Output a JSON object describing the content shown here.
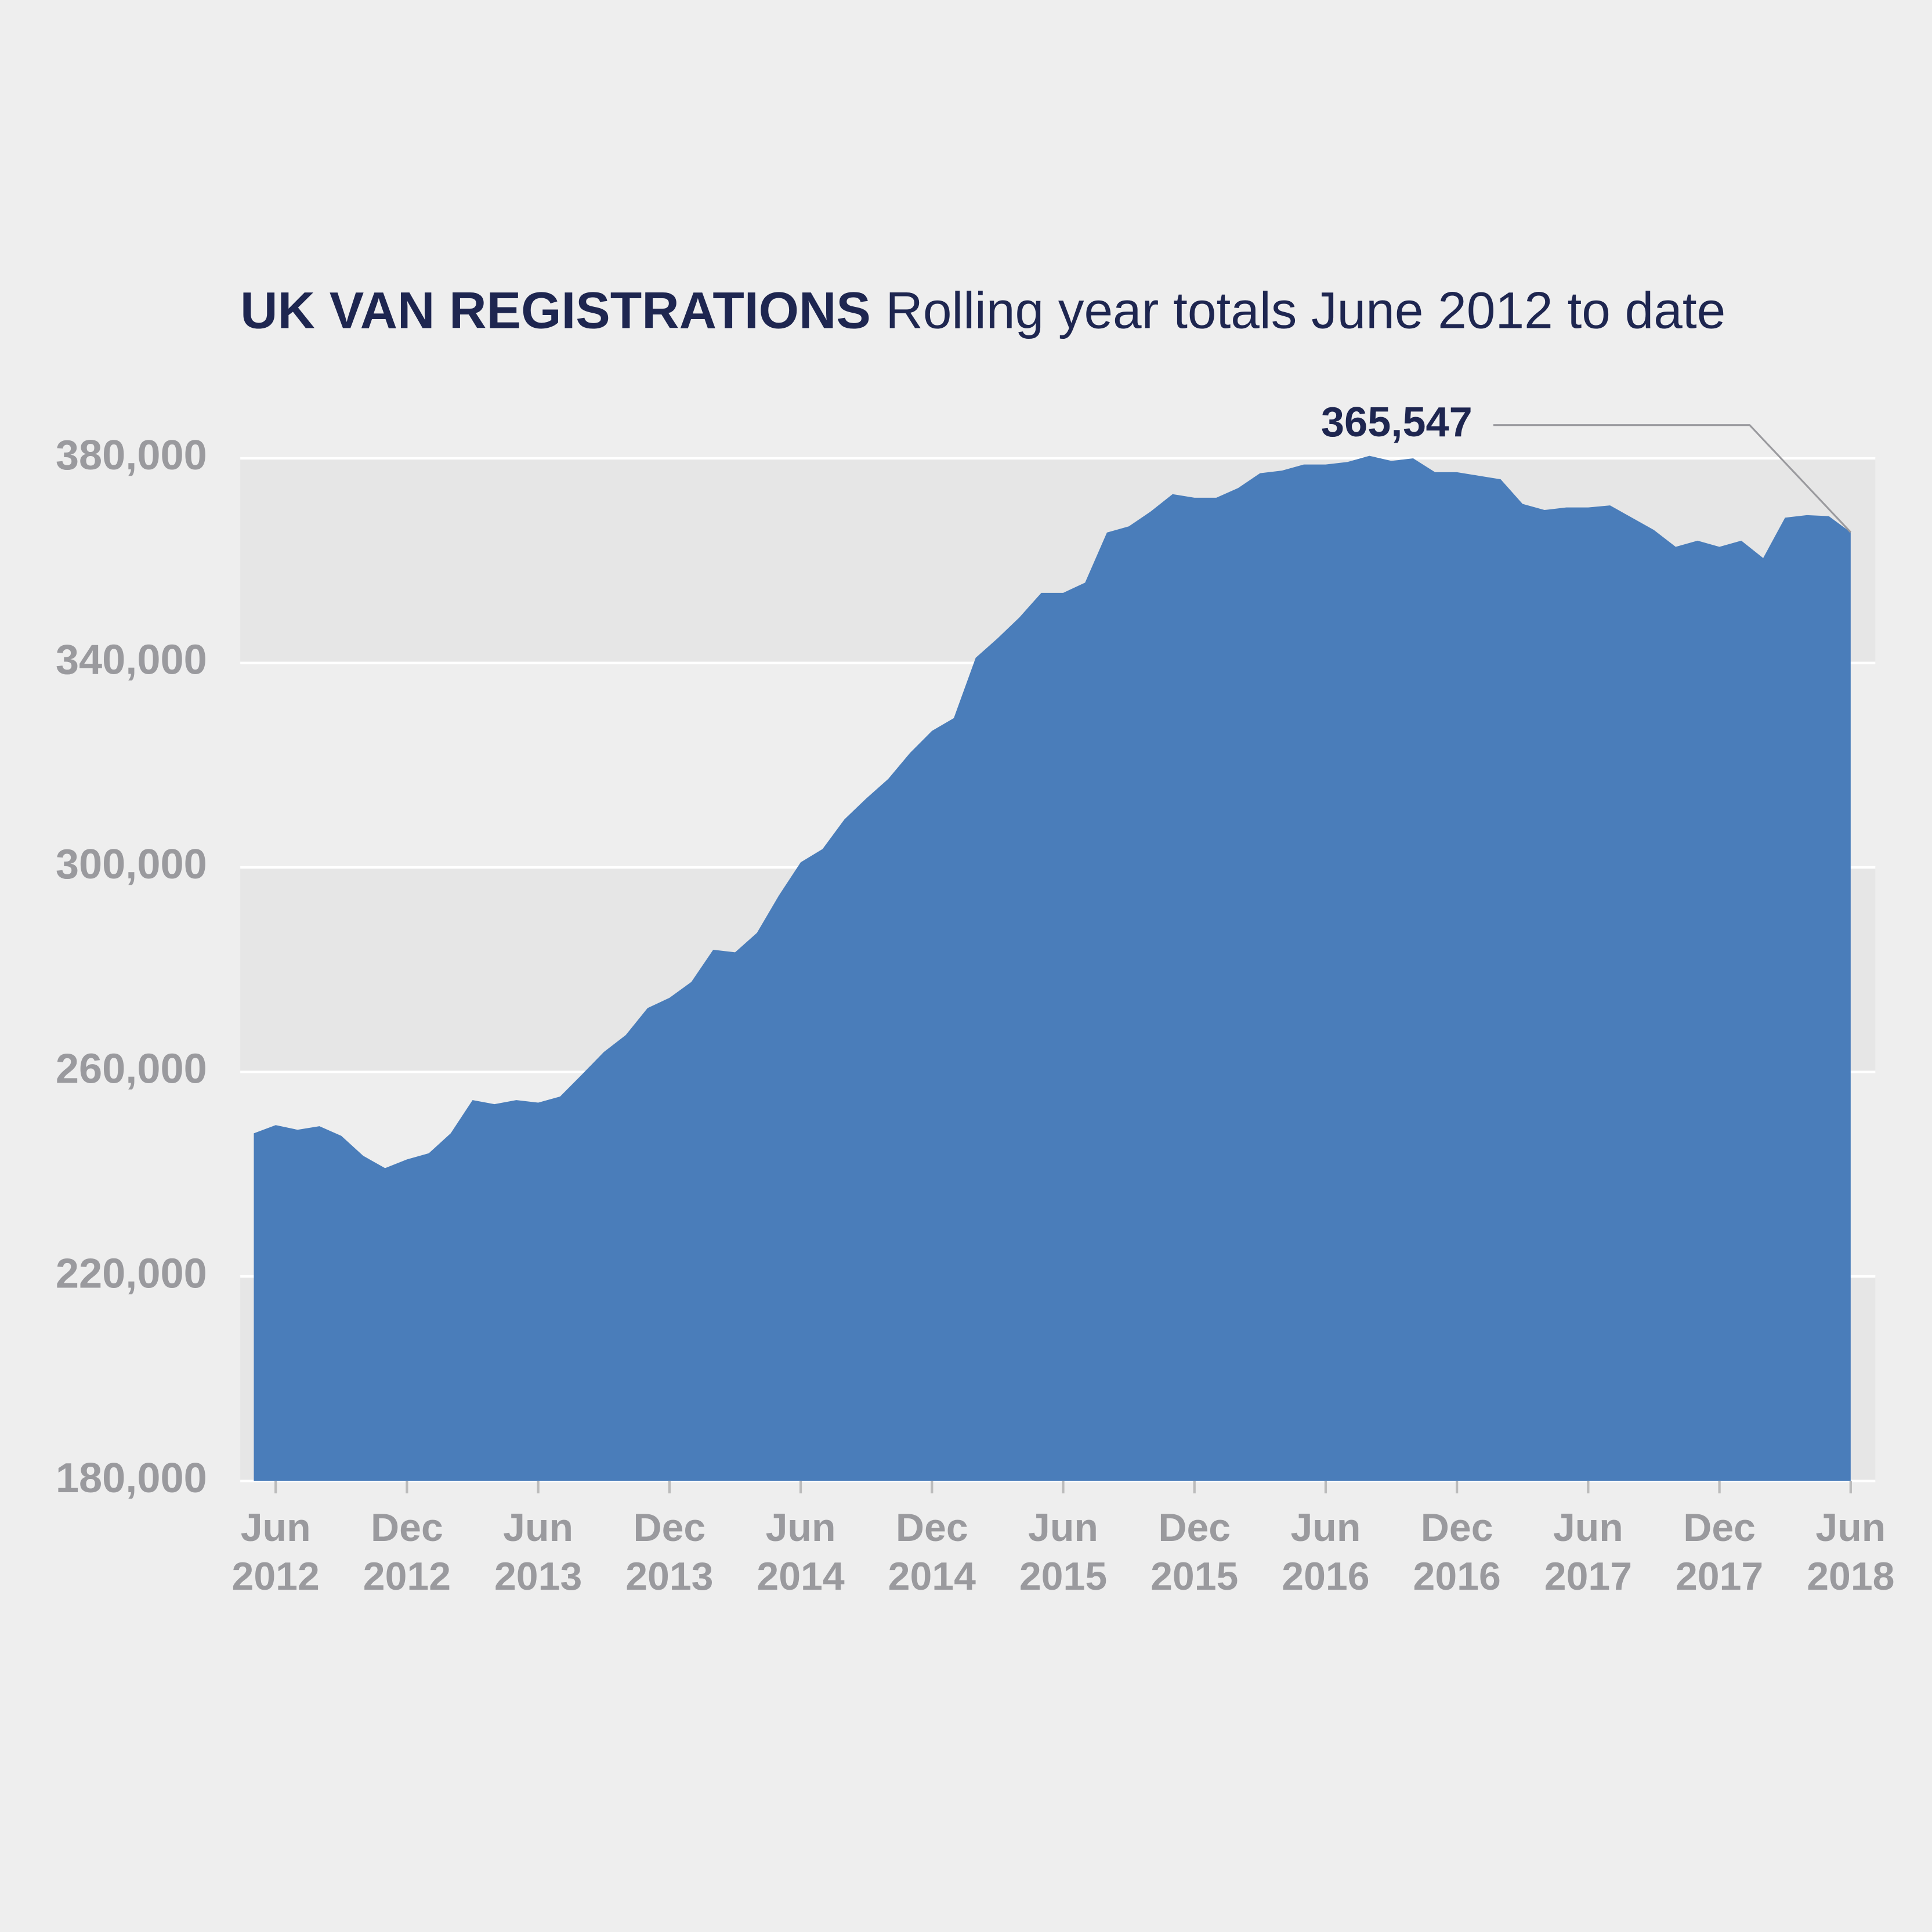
{
  "chart_data": {
    "type": "area",
    "title": "UK VAN REGISTRATIONS",
    "subtitle": "Rolling year totals June 2012 to date",
    "categories": [
      null,
      "Jun\n2012",
      null,
      null,
      null,
      null,
      null,
      "Dec\n2012",
      null,
      null,
      null,
      null,
      null,
      "Jun\n2013",
      null,
      null,
      null,
      null,
      null,
      "Dec\n2013",
      null,
      null,
      null,
      null,
      null,
      "Jun\n2014",
      null,
      null,
      null,
      null,
      null,
      "Dec\n2014",
      null,
      null,
      null,
      null,
      null,
      "Jun\n2015",
      null,
      null,
      null,
      null,
      null,
      "Dec\n2015",
      null,
      null,
      null,
      null,
      null,
      "Jun\n2016",
      null,
      null,
      null,
      null,
      null,
      "Dec\n2016",
      null,
      null,
      null,
      null,
      null,
      "Jun\n2017",
      null,
      null,
      null,
      null,
      null,
      "Dec\n2017",
      null,
      null,
      null,
      null,
      null,
      "Jun\n2018"
    ],
    "values": [
      248000,
      249600,
      248700,
      249400,
      247500,
      243600,
      241200,
      242900,
      244100,
      248000,
      254500,
      253700,
      254500,
      254000,
      255200,
      259500,
      263900,
      267200,
      272500,
      274500,
      277600,
      283900,
      283400,
      287200,
      294500,
      301000,
      303600,
      309400,
      313500,
      317300,
      322400,
      326700,
      329200,
      341000,
      344800,
      348900,
      353700,
      353700,
      355700,
      365500,
      366700,
      369600,
      373000,
      372300,
      372300,
      374200,
      377100,
      377600,
      378800,
      378800,
      379300,
      380500,
      379500,
      380000,
      377300,
      377300,
      376600,
      375900,
      371100,
      369900,
      370400,
      370400,
      370800,
      368400,
      366000,
      362700,
      363900,
      362700,
      363900,
      360500,
      368400,
      368900,
      368700,
      365547
    ],
    "value_labels": [
      null,
      null,
      null,
      null,
      null,
      null,
      null,
      null,
      null,
      null,
      null,
      null,
      null,
      null,
      null,
      null,
      null,
      null,
      null,
      null,
      null,
      null,
      null,
      null,
      null,
      null,
      null,
      null,
      null,
      null,
      null,
      null,
      null,
      null,
      null,
      null,
      null,
      null,
      null,
      null,
      null,
      null,
      null,
      null,
      null,
      null,
      null,
      null,
      null,
      null,
      null,
      null,
      null,
      null,
      null,
      null,
      null,
      null,
      null,
      null,
      null,
      null,
      null,
      null,
      null,
      null,
      null,
      null,
      null,
      null,
      null,
      null,
      null,
      "365,547"
    ],
    "color": "#4a7dba",
    "ylim": [
      180000,
      380000
    ],
    "yticks": [
      {
        "value": 180000,
        "label": "180,000"
      },
      {
        "value": 220000,
        "label": "220,000"
      },
      {
        "value": 260000,
        "label": "260,000"
      },
      {
        "value": 300000,
        "label": "300,000"
      },
      {
        "value": 340000,
        "label": "340,000"
      },
      {
        "value": 380000,
        "label": "380,000"
      }
    ],
    "grid": true
  }
}
